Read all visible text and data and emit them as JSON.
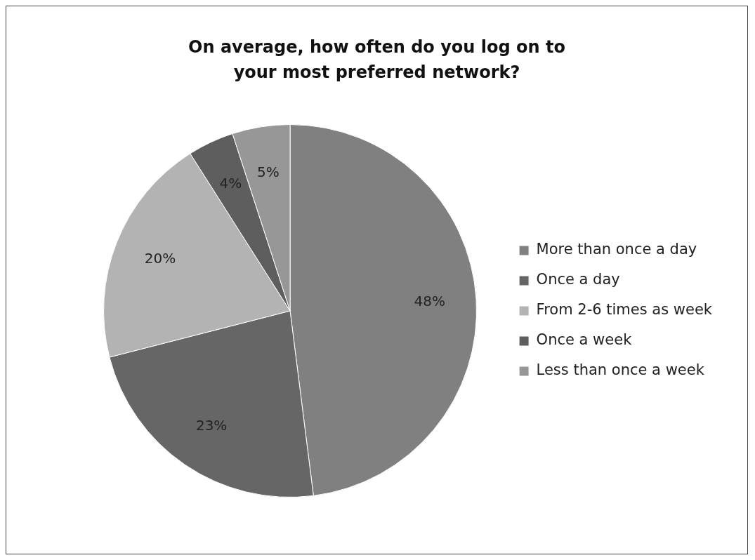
{
  "chart_data": {
    "type": "pie",
    "title": "On average, how often do you log on to your most preferred network?",
    "categories": [
      "More than once a day",
      "Once a day",
      "From 2-6 times as week",
      "Once a week",
      "Less than once a week"
    ],
    "values": [
      48,
      23,
      20,
      4,
      5
    ],
    "value_labels": [
      "48%",
      "23%",
      "20%",
      "4%",
      "5%"
    ],
    "colors": [
      "#808080",
      "#666666",
      "#b3b3b3",
      "#5e5e5e",
      "#979797"
    ],
    "legend": "right"
  }
}
